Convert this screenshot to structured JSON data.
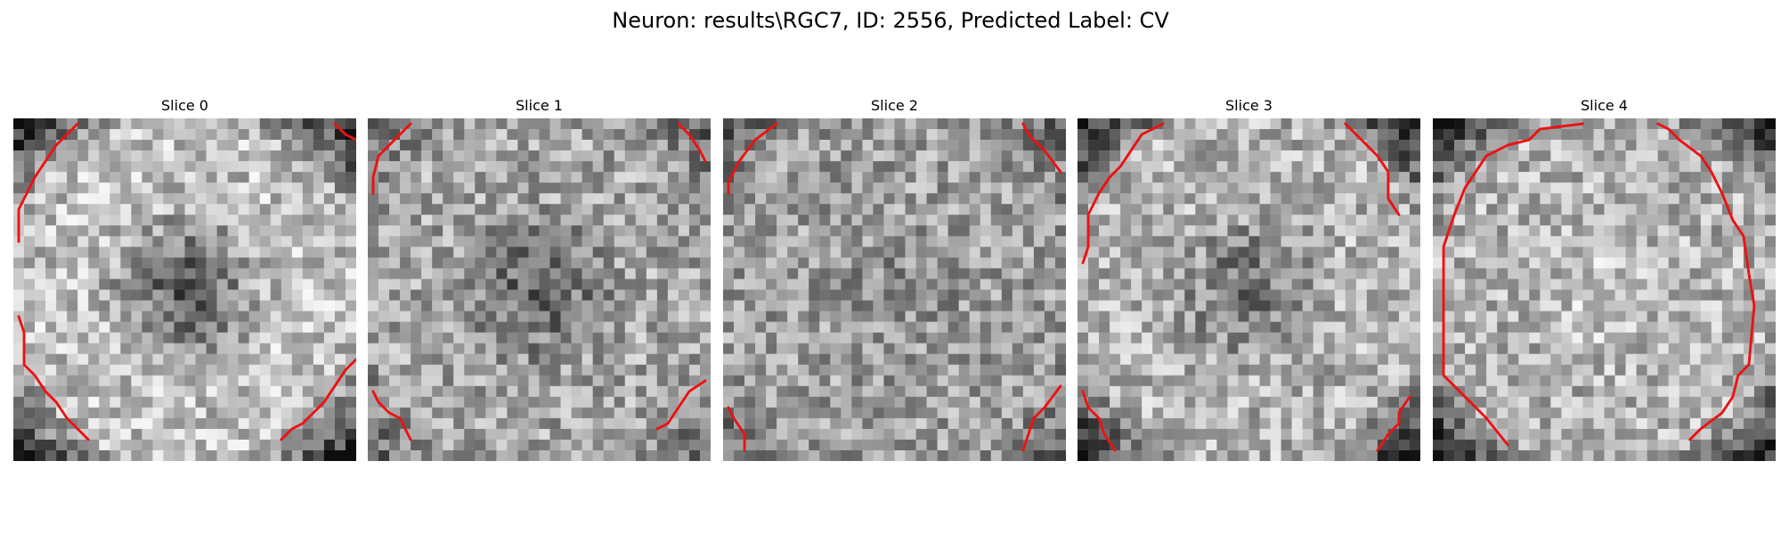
{
  "figure": {
    "title": "Neuron: results\\RGC7, ID: 2556, Predicted Label: CV"
  },
  "colors": {
    "contour": "#ee1111"
  },
  "slices": [
    {
      "title": "Slice 0"
    },
    {
      "title": "Slice 1"
    },
    {
      "title": "Slice 2"
    },
    {
      "title": "Slice 3"
    },
    {
      "title": "Slice 4"
    }
  ]
}
